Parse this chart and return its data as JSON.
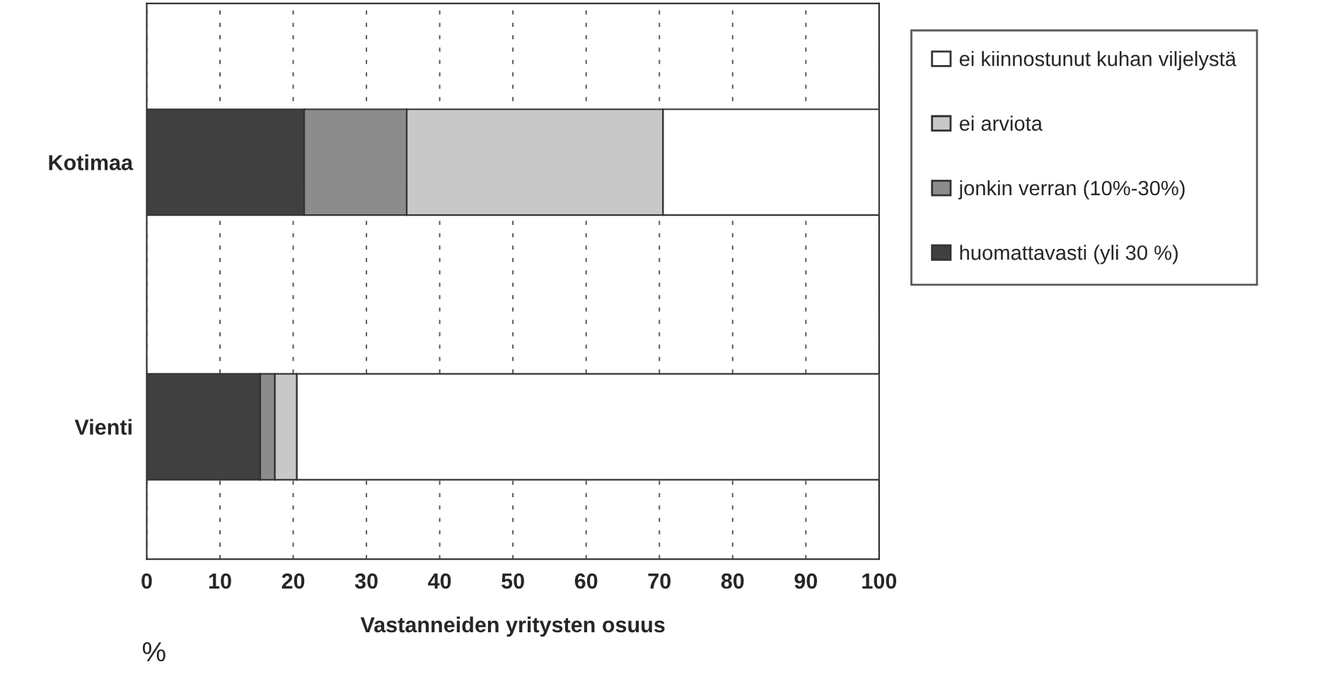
{
  "chart_data": {
    "type": "bar",
    "orientation": "horizontal",
    "stacked": true,
    "categories": [
      "Kotimaa",
      "Vienti"
    ],
    "series": [
      {
        "name": "huomattavasti (yli 30 %)",
        "color": "#404040",
        "values": [
          21.5,
          15.5
        ]
      },
      {
        "name": "jonkin verran (10%-30%)",
        "color": "#8c8c8c",
        "values": [
          14,
          2
        ]
      },
      {
        "name": "ei arviota",
        "color": "#c8c8c8",
        "values": [
          35,
          3
        ]
      },
      {
        "name": "ei kiinnostunut kuhan viljelystä",
        "color": "#ffffff",
        "values": [
          29.5,
          79.5
        ]
      }
    ],
    "xlim": [
      0,
      100
    ],
    "xticks": [
      0,
      10,
      20,
      30,
      40,
      50,
      60,
      70,
      80,
      90,
      100
    ],
    "xlabel": "Vastanneiden yritysten osuus",
    "annotations": [
      "%"
    ],
    "grid": "x",
    "legend": "right"
  }
}
